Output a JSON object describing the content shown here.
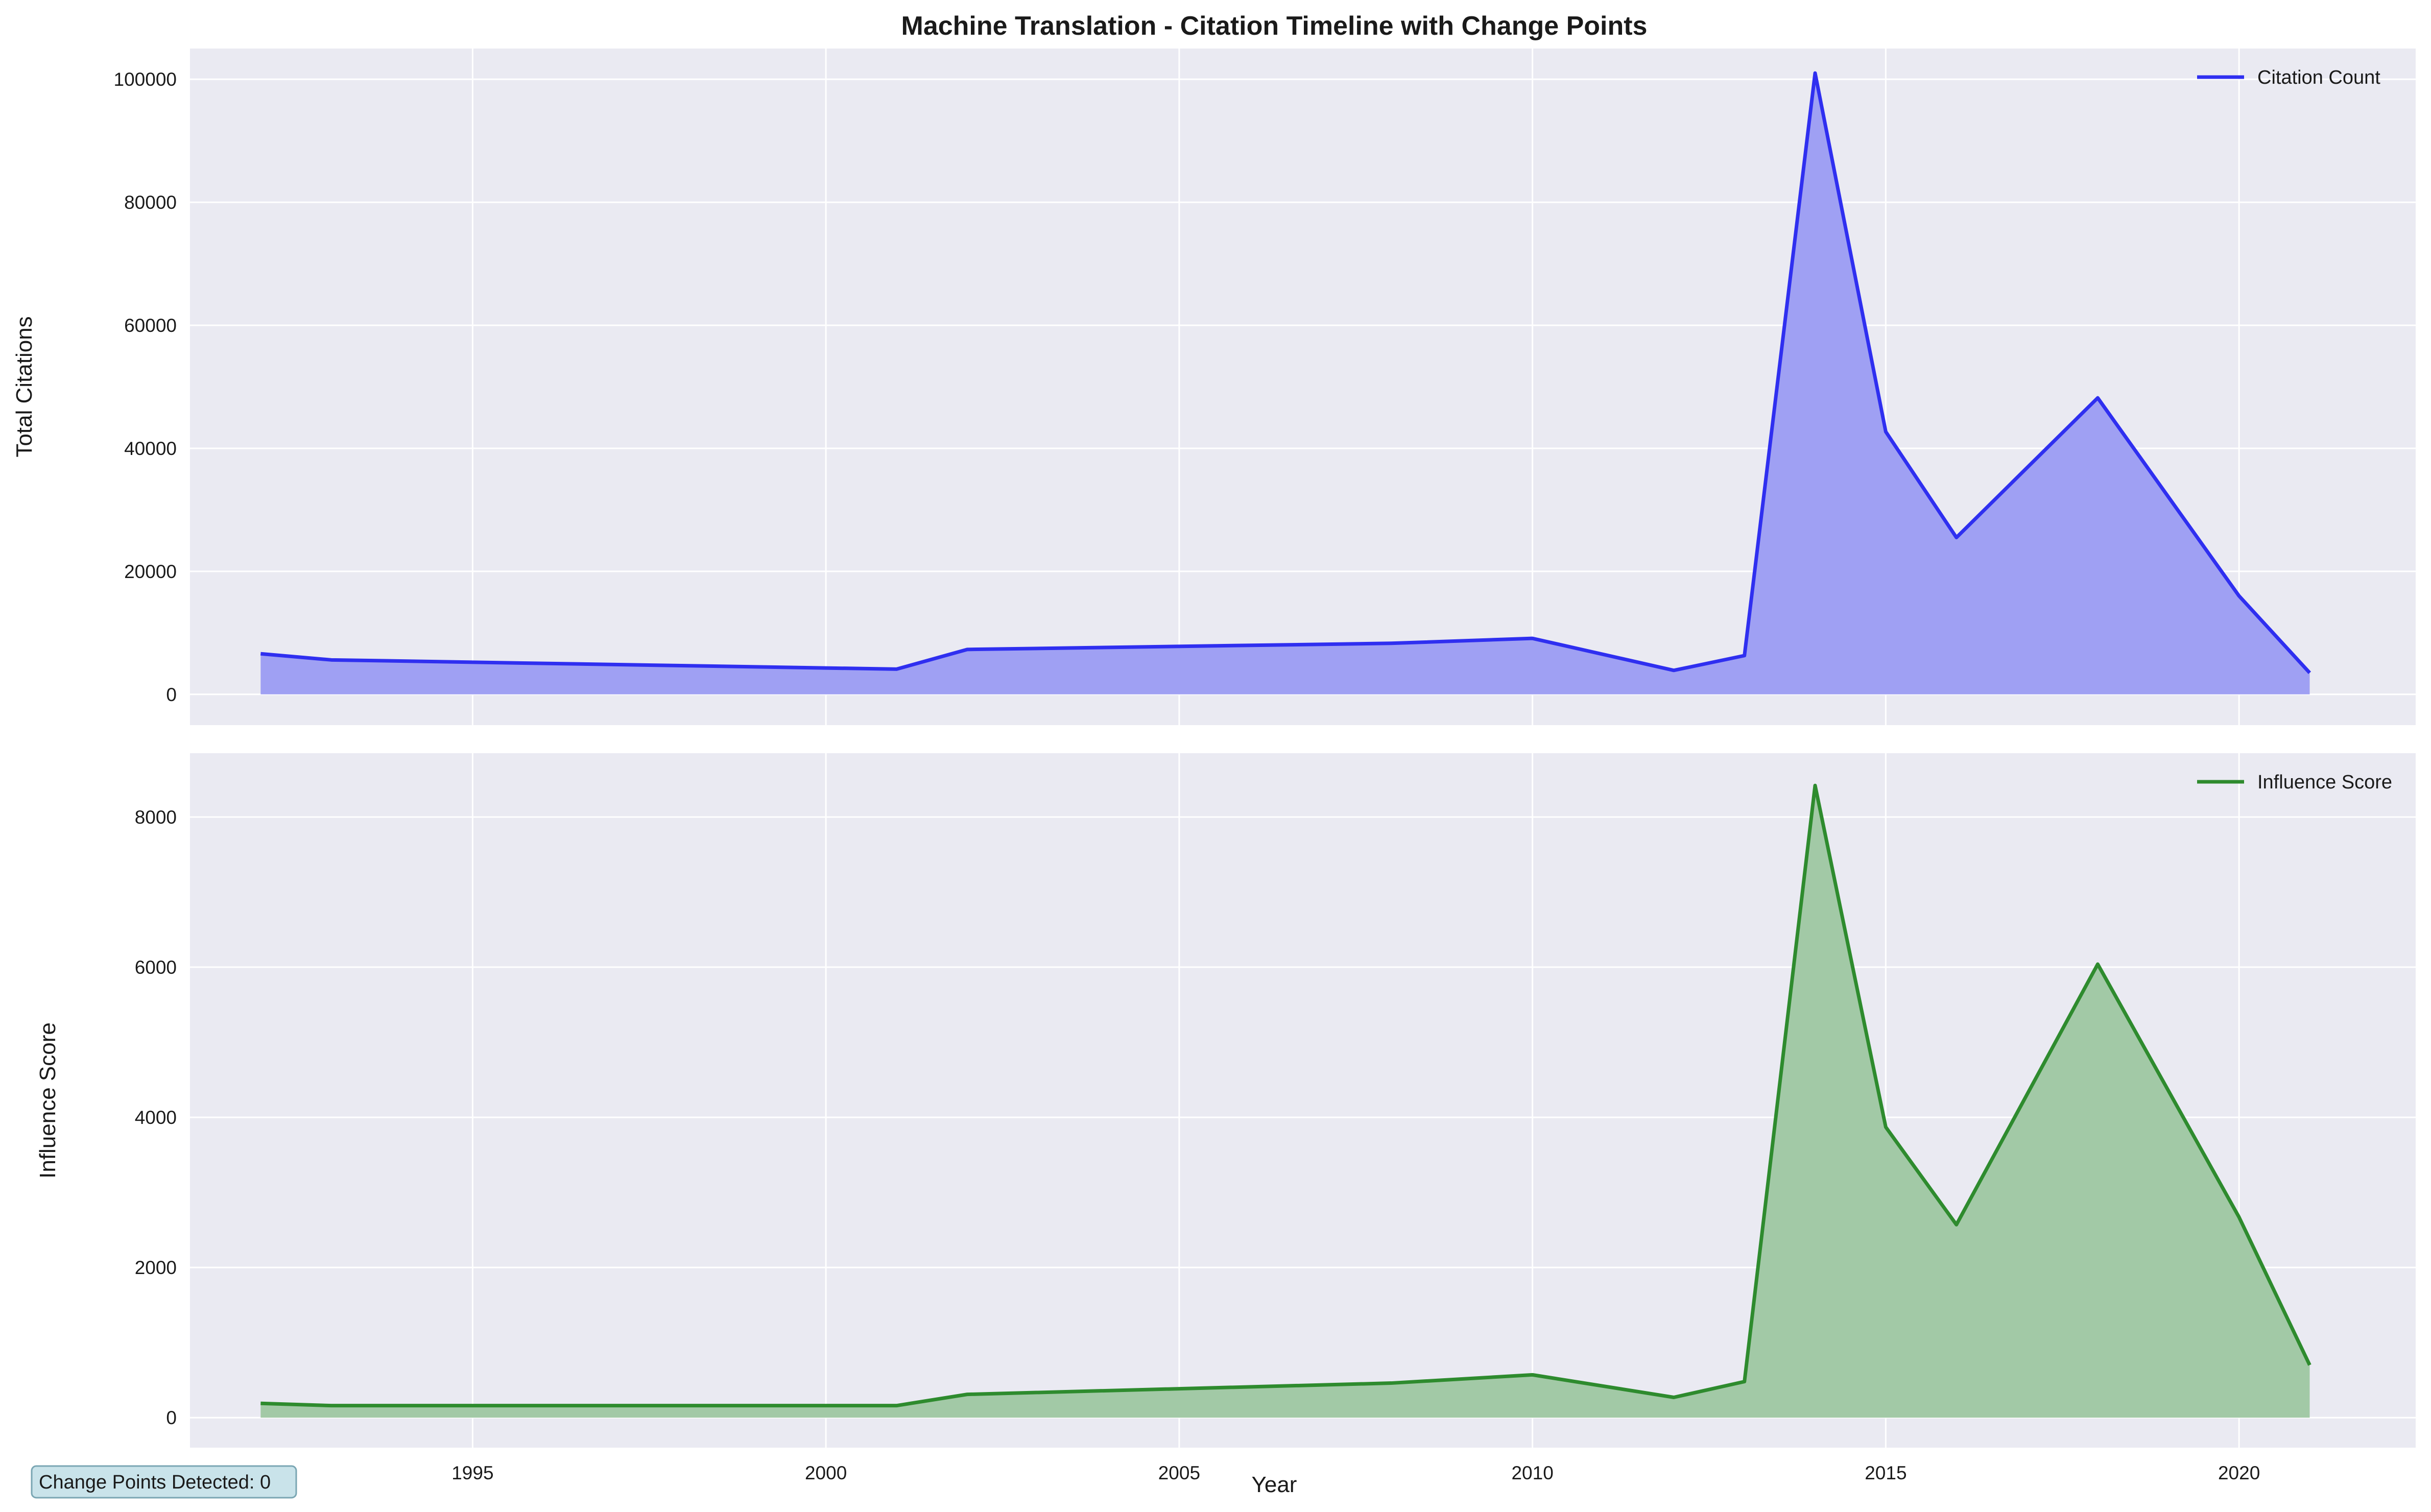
{
  "chart_data": {
    "type": "area",
    "title": "Machine Translation - Citation Timeline with Change Points",
    "xlabel": "Year",
    "xlim": [
      1991,
      2022.5
    ],
    "xticks": [
      1995,
      2000,
      2005,
      2010,
      2015,
      2020
    ],
    "x": [
      1992,
      1993,
      2001,
      2002,
      2008,
      2010,
      2012,
      2013,
      2014,
      2015,
      2016,
      2018,
      2020,
      2021
    ],
    "grid": true,
    "annotation": "Change Points Detected: 0",
    "panels": [
      {
        "ylabel": "Total Citations",
        "ylim": [
          -5000,
          105000
        ],
        "yticks": [
          0,
          20000,
          40000,
          60000,
          80000,
          100000
        ],
        "legend_position": "top-right",
        "series": [
          {
            "name": "Citation Count",
            "color": "#2f2ff0",
            "fill": "#9fa0f3",
            "values": [
              6600,
              5600,
              4100,
              7300,
              8300,
              9100,
              3900,
              6300,
              101000,
              42700,
              25500,
              48200,
              16000,
              3500
            ]
          }
        ]
      },
      {
        "ylabel": "Influence Score",
        "ylim": [
          -400,
          8850
        ],
        "yticks": [
          0,
          2000,
          4000,
          6000,
          8000
        ],
        "legend_position": "top-right",
        "series": [
          {
            "name": "Influence Score",
            "color": "#2e8b2e",
            "fill": "#a2c9a6",
            "values": [
              190,
              160,
              160,
              310,
              460,
              570,
              270,
              480,
              8420,
              3870,
              2570,
              6040,
              2670,
              700
            ]
          }
        ]
      }
    ]
  }
}
